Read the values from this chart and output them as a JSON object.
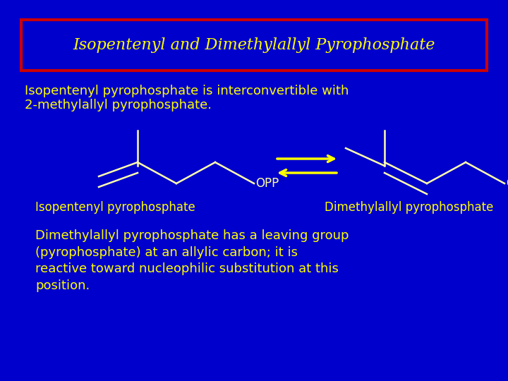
{
  "bg_color": "#0000CC",
  "title_text": "Isopentenyl and Dimethylallyl Pyrophosphate",
  "title_color": "#FFFF00",
  "title_border_color": "#CC0000",
  "body_color": "#FFFF00",
  "text1_line1": "Isopentenyl pyrophosphate is interconvertible with",
  "text1_line2": "2-methylallyl pyrophosphate.",
  "label_left": "Isopentenyl pyrophosphate",
  "label_right": "Dimethylallyl pyrophosphate",
  "opp_label": "OPP",
  "bottom_text": "Dimethylallyl pyrophosphate has a leaving group\n(pyrophosphate) at an allylic carbon; it is\nreactive toward nucleophilic substitution at this\nposition.",
  "struct_color": "#FFFFAA",
  "arrow_color": "#FFFF00",
  "lw": 1.8
}
